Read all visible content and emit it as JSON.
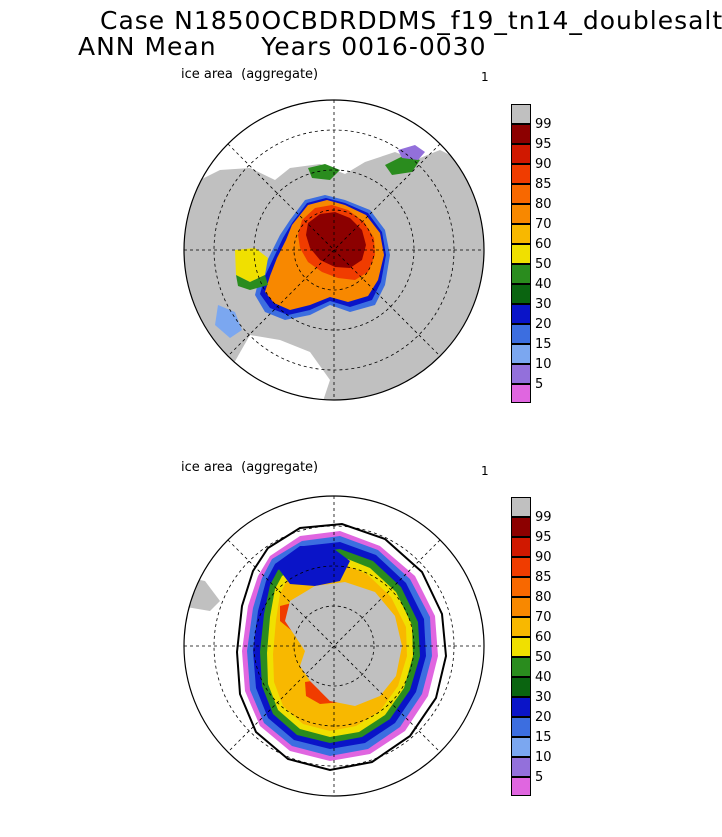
{
  "header": {
    "line1": "Case N1850OCBDRDDMS_f19_tn14_doublesalt",
    "line2": "ANN Mean     Years 0016-0030"
  },
  "colors": {
    "land": "#c0c0c0",
    "ocean": "#ffffff",
    "grid": "#000000"
  },
  "colorbar": {
    "levels": [
      {
        "label": "5",
        "color": "#e066e0"
      },
      {
        "label": "10",
        "color": "#9370db"
      },
      {
        "label": "15",
        "color": "#7ba7f0"
      },
      {
        "label": "20",
        "color": "#3c6ee0"
      },
      {
        "label": "30",
        "color": "#0a14c8"
      },
      {
        "label": "40",
        "color": "#0a6410"
      },
      {
        "label": "50",
        "color": "#2a8c1e"
      },
      {
        "label": "60",
        "color": "#f0e000"
      },
      {
        "label": "70",
        "color": "#f8b800"
      },
      {
        "label": "80",
        "color": "#f88800"
      },
      {
        "label": "85",
        "color": "#f86800"
      },
      {
        "label": "90",
        "color": "#f03c00"
      },
      {
        "label": "95",
        "color": "#d01800"
      },
      {
        "label": "99",
        "color": "#8c0000"
      }
    ],
    "top_color": "#c0c0c0"
  },
  "panels": [
    {
      "id": "north",
      "label": "ice area  (aggregate)",
      "number": "1",
      "hemisphere": "Northern Hemisphere"
    },
    {
      "id": "south",
      "label": "ice area  (aggregate)",
      "number": "1",
      "hemisphere": "Southern Hemisphere"
    }
  ]
}
